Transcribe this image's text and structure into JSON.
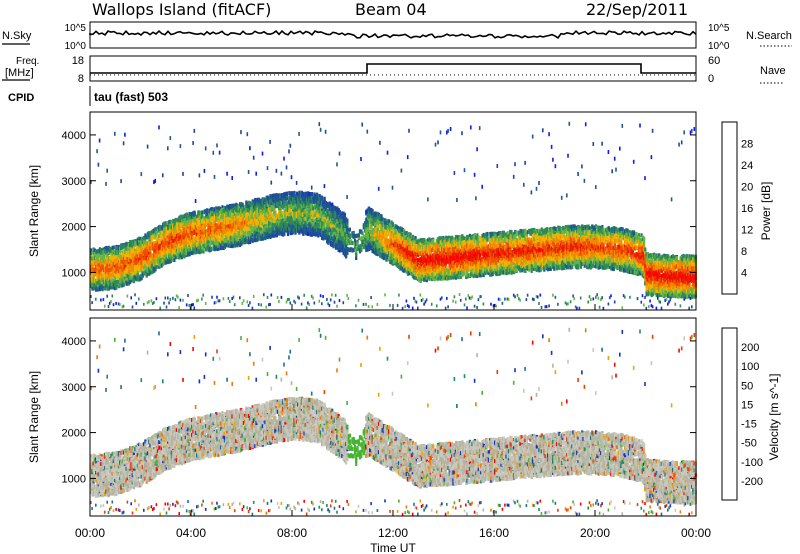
{
  "header": {
    "station": "Wallops Island (fitACF)",
    "beam": "Beam 04",
    "date": "22/Sep/2011"
  },
  "noise_panel": {
    "left_label": "N.Sky",
    "right_label": "N.Search",
    "left_ticks": [
      "10^5",
      "10^0"
    ],
    "right_ticks": [
      "10^5",
      "10^0"
    ]
  },
  "freq_panel": {
    "left_label_line1": "Freq.",
    "left_label_line2": "[MHz]",
    "right_label": "Nave",
    "left_ticks": [
      "18",
      "8"
    ],
    "right_ticks": [
      "60",
      "0"
    ]
  },
  "cpid": {
    "label": "CPID",
    "value": "tau (fast) 503"
  },
  "colors": {
    "power_scale": [
      "#0a1ef0",
      "#1e46a0",
      "#1e5a8c",
      "#2e8b57",
      "#64b446",
      "#f0b400",
      "#f08c00",
      "#f05000",
      "#e61e00",
      "#ff0000"
    ],
    "velocity_scale": [
      "#1432c8",
      "#1e6e96",
      "#1e8c64",
      "#46b432",
      "#b4b4a0",
      "#c8c8be",
      "#f0a000",
      "#f07800",
      "#f03c00",
      "#ff0000"
    ],
    "ground_scatter": "#c8c8be"
  },
  "chart_data": [
    {
      "type": "heatmap",
      "title": "",
      "xlabel": "Time UT",
      "ylabel": "Slant Range [km]",
      "colorbar_label": "Power [dB]",
      "colorbar_ticks": [
        "4",
        "8",
        "12",
        "16",
        "20",
        "24",
        "28"
      ],
      "x_tick_labels": [
        "00:00",
        "04:00",
        "08:00",
        "12:00",
        "16:00",
        "20:00",
        "00:00"
      ],
      "y_tick_labels": [
        "1000",
        "2000",
        "3000",
        "4000"
      ],
      "xlim_hours": [
        0,
        24
      ],
      "ylim_km": [
        180,
        4500
      ],
      "clim_db": [
        0,
        32
      ],
      "scatter_band": {
        "hours": [
          0,
          1,
          2,
          3,
          4,
          5,
          6,
          7,
          8,
          9,
          10,
          10.5,
          11,
          12,
          13,
          14,
          15,
          16,
          17,
          18,
          19,
          20,
          21,
          21.9,
          22,
          23,
          24
        ],
        "center_km": [
          1100,
          1150,
          1350,
          1700,
          1900,
          2000,
          2100,
          2250,
          2350,
          2300,
          1900,
          1600,
          2000,
          1650,
          1300,
          1350,
          1400,
          1450,
          1500,
          1550,
          1600,
          1600,
          1550,
          1400,
          1000,
          950,
          950
        ],
        "peak_power_db": [
          24,
          24,
          26,
          26,
          25,
          24,
          22,
          18,
          16,
          16,
          14,
          12,
          16,
          26,
          30,
          30,
          30,
          28,
          28,
          27,
          27,
          26,
          26,
          28,
          30,
          30,
          30
        ]
      }
    },
    {
      "type": "heatmap",
      "title": "",
      "xlabel": "Time UT",
      "ylabel": "Slant Range [km]",
      "colorbar_label": "Velocity [m s^-1]",
      "colorbar_ticks": [
        "-200",
        "-100",
        "-50",
        "-15",
        "15",
        "50",
        "100",
        "200"
      ],
      "x_tick_labels": [
        "00:00",
        "04:00",
        "08:00",
        "12:00",
        "16:00",
        "20:00",
        "00:00"
      ],
      "y_tick_labels": [
        "1000",
        "2000",
        "3000",
        "4000"
      ],
      "xlim_hours": [
        0,
        24
      ],
      "ylim_km": [
        180,
        4500
      ],
      "clim_ms": [
        -250,
        250
      ]
    }
  ]
}
